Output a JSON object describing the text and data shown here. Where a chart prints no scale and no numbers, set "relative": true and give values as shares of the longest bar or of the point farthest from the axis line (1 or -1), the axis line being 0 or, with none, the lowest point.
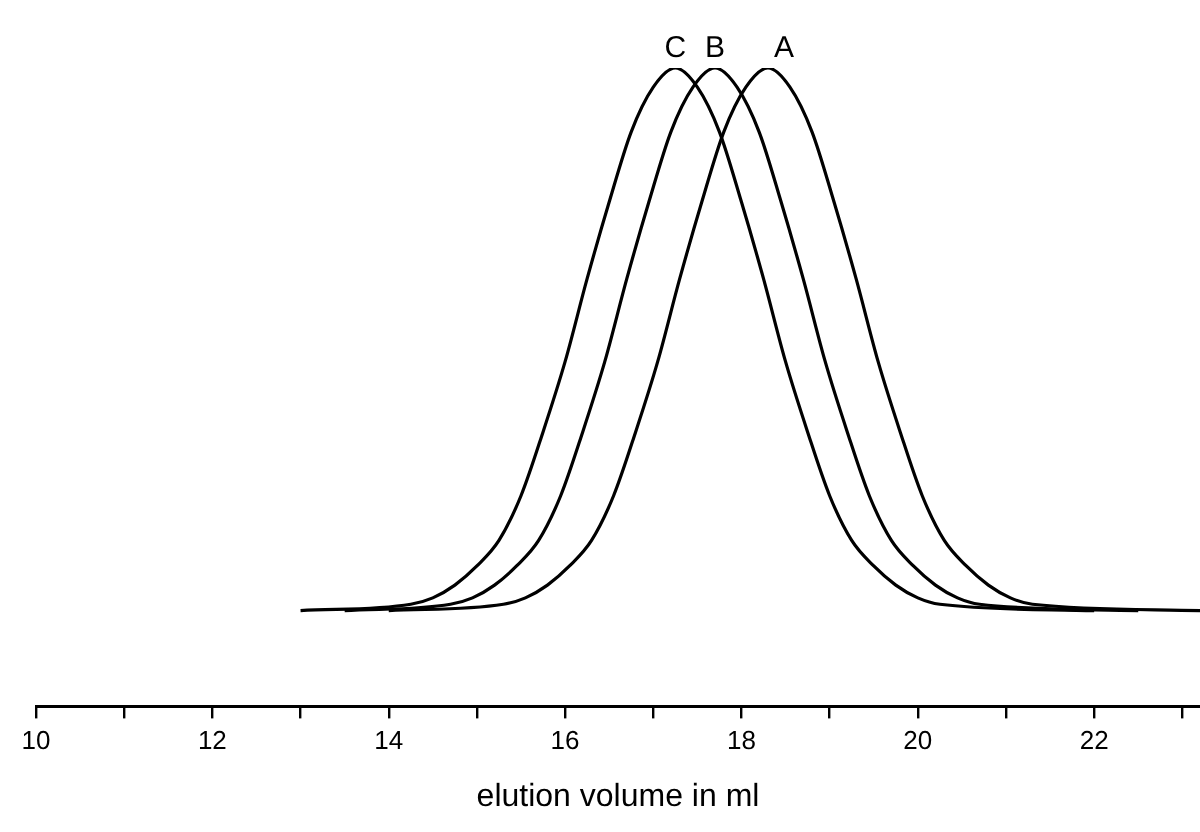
{
  "chart_data": {
    "type": "line",
    "xlabel": "elution volume in ml",
    "relative": true,
    "marker": "none",
    "legend": false,
    "grid": false,
    "xlim": [
      10,
      23.2
    ],
    "xticks": [
      10,
      {
        "value": 11,
        "label": null
      },
      12,
      {
        "value": 13,
        "label": null
      },
      14,
      {
        "value": 15,
        "label": null
      },
      16,
      {
        "value": 17,
        "label": null
      },
      18,
      {
        "value": 19,
        "label": null
      },
      20,
      {
        "value": 21,
        "label": null
      },
      22,
      {
        "value": 23,
        "label": null
      }
    ],
    "series": [
      {
        "name": "A",
        "color": "#000000",
        "x": [
          14,
          15.3,
          15.55,
          15.8,
          16.05,
          16.3,
          16.55,
          16.8,
          17.05,
          17.3,
          17.55,
          17.8,
          18.05,
          18.3,
          18.55,
          18.8,
          19.05,
          19.3,
          19.55,
          19.8,
          20.05,
          20.3,
          20.55,
          20.8,
          21.05,
          21.3,
          23.2
        ],
        "values": [
          0.15,
          0.16,
          0.17,
          0.19,
          0.22,
          0.26,
          0.33,
          0.43,
          0.54,
          0.67,
          0.79,
          0.9,
          0.97,
          1,
          0.97,
          0.9,
          0.79,
          0.67,
          0.54,
          0.43,
          0.33,
          0.26,
          0.22,
          0.19,
          0.17,
          0.16,
          0.15
        ]
      },
      {
        "name": "B",
        "color": "#000000",
        "x": [
          13.5,
          14.7,
          14.95,
          15.2,
          15.45,
          15.7,
          15.95,
          16.2,
          16.45,
          16.7,
          16.95,
          17.2,
          17.45,
          17.7,
          17.95,
          18.2,
          18.45,
          18.7,
          18.95,
          19.2,
          19.45,
          19.7,
          19.95,
          20.2,
          20.45,
          20.7,
          22.5
        ],
        "values": [
          0.15,
          0.16,
          0.17,
          0.19,
          0.22,
          0.26,
          0.33,
          0.43,
          0.54,
          0.67,
          0.79,
          0.9,
          0.97,
          1,
          0.97,
          0.9,
          0.79,
          0.67,
          0.54,
          0.43,
          0.33,
          0.26,
          0.22,
          0.19,
          0.17,
          0.16,
          0.15
        ]
      },
      {
        "name": "C",
        "color": "#000000",
        "x": [
          13,
          14.25,
          14.5,
          14.75,
          15,
          15.25,
          15.5,
          15.75,
          16,
          16.25,
          16.5,
          16.75,
          17,
          17.25,
          17.5,
          17.75,
          18,
          18.25,
          18.5,
          18.75,
          19,
          19.25,
          19.5,
          19.75,
          20,
          20.25,
          22
        ],
        "values": [
          0.15,
          0.16,
          0.17,
          0.19,
          0.22,
          0.26,
          0.33,
          0.43,
          0.54,
          0.67,
          0.79,
          0.9,
          0.97,
          1,
          0.97,
          0.9,
          0.79,
          0.67,
          0.54,
          0.43,
          0.33,
          0.26,
          0.22,
          0.19,
          0.17,
          0.16,
          0.15
        ]
      }
    ]
  }
}
